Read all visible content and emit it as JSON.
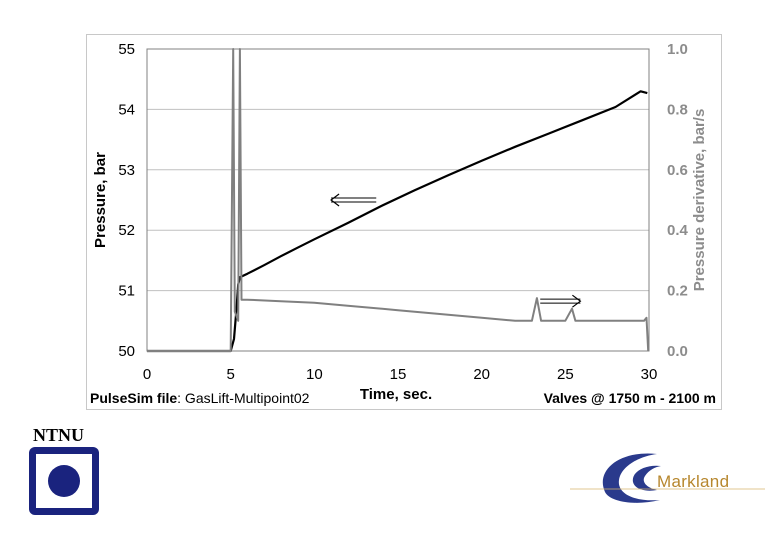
{
  "chart_data": {
    "type": "line",
    "xlabel": "Time, sec.",
    "ylabel": "Pressure, bar",
    "y2label": "Pressure derivative, bar/s",
    "xlim": [
      0,
      30
    ],
    "ylim": [
      50,
      55
    ],
    "y2lim": [
      0.0,
      1.0
    ],
    "x_ticks": [
      "0",
      "5",
      "10",
      "15",
      "20",
      "25",
      "30"
    ],
    "y_ticks": [
      "50",
      "51",
      "52",
      "53",
      "54",
      "55"
    ],
    "y2_ticks": [
      "0.0",
      "0.2",
      "0.4",
      "0.6",
      "0.8",
      "1.0"
    ],
    "grid": "horizontal",
    "series": [
      {
        "axis": "left",
        "color": "#000000",
        "x": [
          0,
          5.0,
          5.2,
          5.35,
          5.45,
          5.55,
          6,
          7,
          8,
          9,
          10,
          12,
          14,
          16,
          18,
          20,
          22,
          24,
          26,
          28,
          29.5,
          29.9
        ],
        "y": [
          50,
          50,
          50.2,
          50.7,
          51.1,
          51.22,
          51.28,
          51.42,
          51.57,
          51.71,
          51.85,
          52.12,
          52.4,
          52.66,
          52.91,
          53.15,
          53.38,
          53.6,
          53.82,
          54.04,
          54.3,
          54.27
        ]
      },
      {
        "axis": "right",
        "color": "#808080",
        "x": [
          0,
          5.0,
          5.15,
          5.25,
          5.45,
          5.55,
          5.65,
          6,
          8,
          10,
          12,
          15,
          18,
          20,
          22,
          23.0,
          23.3,
          23.55,
          23.8,
          25.0,
          25.4,
          25.6,
          26,
          28,
          29.7,
          29.85,
          29.95
        ],
        "y": [
          0,
          0,
          1.0,
          0.13,
          0.1,
          1.0,
          0.17,
          0.17,
          0.165,
          0.16,
          0.15,
          0.135,
          0.12,
          0.11,
          0.1,
          0.1,
          0.175,
          0.1,
          0.1,
          0.1,
          0.14,
          0.1,
          0.1,
          0.1,
          0.1,
          0.11,
          0.0
        ]
      }
    ],
    "annotations": [
      {
        "type": "arrow",
        "direction": "left",
        "x_from": 13.7,
        "x_to": 11.0,
        "y": 52.5,
        "axis": "left"
      },
      {
        "type": "arrow",
        "direction": "right",
        "x_from": 23.5,
        "x_to": 25.9,
        "y": 0.165,
        "axis": "right"
      }
    ]
  },
  "footer": {
    "file_label": "PulseSim file",
    "file_name": ": GasLift-Multipoint02",
    "valves": "Valves @ 1750 m - 2100 m"
  },
  "logos": {
    "ntnu_text": "NTNU",
    "ntnu_color": "#1a237e",
    "markland_text": "Markland",
    "markland_color": "#b7872e",
    "markland_swoosh_color": "#2a3a8c"
  }
}
